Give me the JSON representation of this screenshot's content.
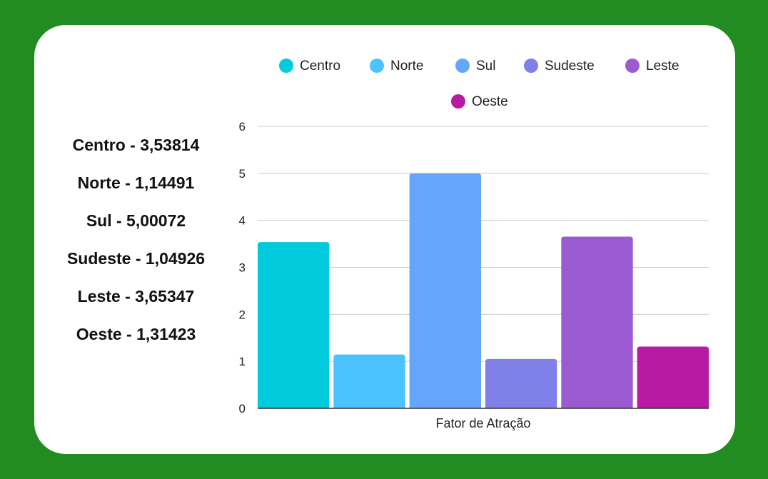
{
  "summary_lines": [
    "Centro - 3,53814",
    "Norte - 1,14491",
    "Sul - 5,00072",
    "Sudeste - 1,04926",
    "Leste - 3,65347",
    "Oeste - 1,31423"
  ],
  "colors": {
    "background": "#228B22",
    "card": "#ffffff",
    "gridline": "#cccccc",
    "axis": "#333333",
    "text": "#222222"
  },
  "chart_data": {
    "type": "bar",
    "categories": [
      "Fator de Atração"
    ],
    "xlabel": "Fator de Atração",
    "ylabel": "",
    "title": "",
    "ylim": [
      0,
      6
    ],
    "yticks": [
      "0",
      "1",
      "2",
      "3",
      "4",
      "5",
      "6"
    ],
    "grid": true,
    "legend_position": "top",
    "series": [
      {
        "name": "Centro",
        "values": [
          3.53814
        ],
        "color": "#00CADC"
      },
      {
        "name": "Norte",
        "values": [
          1.14491
        ],
        "color": "#4AC3FF"
      },
      {
        "name": "Sul",
        "values": [
          5.00072
        ],
        "color": "#66A6FA"
      },
      {
        "name": "Sudeste",
        "values": [
          1.04926
        ],
        "color": "#7F80E8"
      },
      {
        "name": "Leste",
        "values": [
          3.65347
        ],
        "color": "#9A5BD0"
      },
      {
        "name": "Oeste",
        "values": [
          1.31423
        ],
        "color": "#B81AA3"
      }
    ]
  }
}
